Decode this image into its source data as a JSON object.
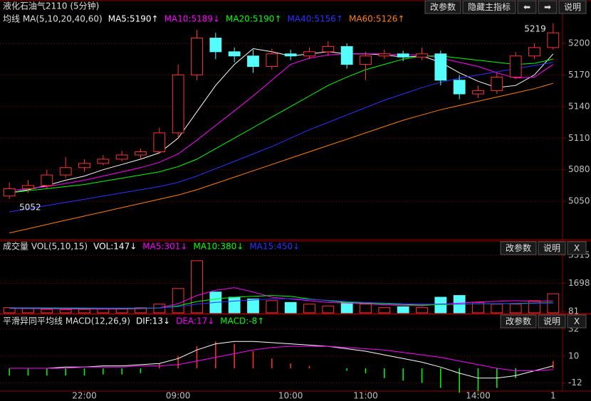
{
  "chart_data": [
    {
      "type": "candlestick",
      "title": "液化石油气2110 (5分钟)",
      "legend_title": "均线 MA(5,10,20,40,60)",
      "buttons": [
        "改参数",
        "隐藏主指标",
        "⬅",
        "➡",
        "说明"
      ],
      "high_label": "5219",
      "low_label": "5052",
      "up_color": "#ff3232",
      "down_color": "#54fcfc",
      "open": [
        5055,
        5062,
        5065,
        5075,
        5082,
        5086,
        5090,
        5094,
        5097,
        5115,
        5170,
        5205,
        5192,
        5188,
        5178,
        5190,
        5188,
        5192,
        5197,
        5180,
        5188,
        5190,
        5187,
        5190,
        5165,
        5152,
        5155,
        5168,
        5188,
        5196
      ],
      "close": [
        5062,
        5065,
        5075,
        5082,
        5086,
        5090,
        5094,
        5097,
        5115,
        5170,
        5205,
        5192,
        5188,
        5178,
        5190,
        5188,
        5192,
        5197,
        5180,
        5188,
        5190,
        5187,
        5190,
        5165,
        5152,
        5155,
        5168,
        5188,
        5196,
        5210
      ],
      "high": [
        5068,
        5070,
        5080,
        5092,
        5090,
        5094,
        5098,
        5100,
        5120,
        5180,
        5213,
        5210,
        5196,
        5194,
        5195,
        5194,
        5196,
        5202,
        5200,
        5192,
        5194,
        5193,
        5196,
        5193,
        5170,
        5160,
        5172,
        5192,
        5200,
        5219
      ],
      "low": [
        5052,
        5058,
        5062,
        5072,
        5078,
        5084,
        5088,
        5090,
        5095,
        5110,
        5165,
        5185,
        5182,
        5172,
        5175,
        5184,
        5185,
        5188,
        5176,
        5165,
        5185,
        5183,
        5184,
        5160,
        5147,
        5148,
        5152,
        5166,
        5185,
        5194
      ],
      "series": [
        {
          "name": "MA5:5190↑",
          "color": "#ffffff",
          "values": [
            5058,
            5061,
            5065,
            5070,
            5074,
            5080,
            5085,
            5090,
            5096,
            5110,
            5135,
            5160,
            5180,
            5195,
            5192,
            5188,
            5190,
            5192,
            5190,
            5190,
            5189,
            5187,
            5188,
            5182,
            5172,
            5164,
            5158,
            5160,
            5170,
            5190
          ]
        },
        {
          "name": "MA10:5189↓",
          "color": "#ff00ff",
          "values": [
            5060,
            5062,
            5064,
            5067,
            5070,
            5074,
            5078,
            5082,
            5087,
            5095,
            5108,
            5122,
            5136,
            5150,
            5165,
            5180,
            5186,
            5189,
            5190,
            5190,
            5190,
            5189,
            5189,
            5186,
            5182,
            5178,
            5172,
            5167,
            5168,
            5180
          ]
        },
        {
          "name": "MA20:5190↑",
          "color": "#00ff00",
          "values": [
            5058,
            5060,
            5062,
            5064,
            5066,
            5069,
            5072,
            5075,
            5078,
            5083,
            5090,
            5100,
            5110,
            5120,
            5130,
            5140,
            5150,
            5160,
            5168,
            5175,
            5180,
            5185,
            5188,
            5188,
            5186,
            5184,
            5182,
            5180,
            5181,
            5185
          ]
        },
        {
          "name": "MA40:5156↑",
          "color": "#3030ff",
          "values": [
            5040,
            5043,
            5046,
            5049,
            5052,
            5055,
            5058,
            5061,
            5064,
            5068,
            5074,
            5081,
            5088,
            5095,
            5102,
            5110,
            5118,
            5125,
            5132,
            5139,
            5146,
            5152,
            5158,
            5163,
            5167,
            5170,
            5173,
            5176,
            5179,
            5182
          ]
        },
        {
          "name": "MA60:5126↑",
          "color": "#ff8000",
          "values": [
            5020,
            5024,
            5028,
            5032,
            5036,
            5040,
            5044,
            5048,
            5052,
            5056,
            5061,
            5067,
            5073,
            5079,
            5085,
            5091,
            5097,
            5103,
            5109,
            5115,
            5121,
            5127,
            5132,
            5137,
            5141,
            5145,
            5149,
            5153,
            5157,
            5162
          ]
        }
      ],
      "ylim": [
        5015,
        5229
      ],
      "yticks": [
        5050,
        5080,
        5110,
        5140,
        5170,
        5200
      ],
      "grid": true
    },
    {
      "type": "bar",
      "legend_title": "成交量 VOL(5,10,15)",
      "buttons": [
        "改参数",
        "说明",
        "X"
      ],
      "name": "VOL:147↓",
      "name_color": "#ffffff",
      "values": [
        300,
        250,
        200,
        180,
        200,
        250,
        220,
        300,
        500,
        1400,
        3000,
        1200,
        900,
        800,
        700,
        600,
        500,
        400,
        600,
        500,
        300,
        350,
        300,
        900,
        1000,
        600,
        500,
        500,
        700,
        1100
      ],
      "series": [
        {
          "name": "MA5:301↓",
          "color": "#ff00ff",
          "values": [
            260,
            250,
            240,
            230,
            220,
            215,
            220,
            240,
            290,
            520,
            1000,
            1300,
            1450,
            1200,
            900,
            800,
            700,
            600,
            560,
            520,
            460,
            430,
            410,
            500,
            560,
            630,
            660,
            700,
            650,
            680
          ]
        },
        {
          "name": "MA10:380↓",
          "color": "#00ff00",
          "values": [
            280,
            275,
            270,
            265,
            260,
            255,
            250,
            255,
            280,
            400,
            650,
            800,
            900,
            950,
            1000,
            950,
            800,
            700,
            600,
            560,
            520,
            480,
            450,
            470,
            500,
            520,
            520,
            540,
            560,
            580
          ]
        },
        {
          "name": "MA15:450↓",
          "color": "#3030ff",
          "values": [
            300,
            300,
            295,
            290,
            285,
            280,
            275,
            275,
            285,
            350,
            500,
            600,
            680,
            740,
            800,
            820,
            780,
            720,
            660,
            600,
            560,
            520,
            500,
            500,
            510,
            520,
            520,
            530,
            540,
            560
          ]
        }
      ],
      "ylim": [
        0,
        3400
      ],
      "yticks": [
        81,
        1698,
        3315
      ],
      "grid": true
    },
    {
      "type": "macd",
      "legend_title": "平滑异同平均线 MACD(12,26,9)",
      "buttons": [
        "改参数",
        "说明",
        "X"
      ],
      "series": [
        {
          "name": "DIF:13↓",
          "color": "#ffffff",
          "values": [
            0,
            0,
            0,
            1,
            1,
            2,
            2,
            3,
            4,
            8,
            15,
            20,
            22,
            22,
            21,
            20,
            19,
            18,
            16,
            14,
            11,
            8,
            5,
            1,
            -4,
            -8,
            -8,
            -6,
            -2,
            2
          ]
        },
        {
          "name": "DEA:17↓",
          "color": "#ff00ff",
          "values": [
            0,
            0,
            0,
            0,
            1,
            1,
            1,
            2,
            2,
            3,
            6,
            9,
            12,
            15,
            17,
            18,
            18,
            18,
            17,
            16,
            15,
            13,
            11,
            9,
            6,
            3,
            0,
            -2,
            -2,
            -1
          ]
        }
      ],
      "histogram": {
        "name": "MACD:-8↑",
        "color": "#00ff00",
        "pos_color": "#ff3232",
        "neg_color": "#00ff00",
        "values": [
          -6,
          -6,
          -6,
          -6,
          -6,
          -5,
          -5,
          -4,
          4,
          10,
          18,
          22,
          20,
          14,
          8,
          4,
          2,
          0,
          -2,
          -4,
          -8,
          -10,
          -12,
          -16,
          -20,
          -22,
          -16,
          -8,
          0,
          6
        ]
      },
      "categories": [
        null,
        null,
        null,
        null,
        "22:00",
        null,
        null,
        null,
        null,
        "09:00",
        null,
        null,
        null,
        null,
        null,
        "10:00",
        null,
        null,
        null,
        "11:00",
        null,
        null,
        null,
        null,
        null,
        "14:00",
        null,
        null,
        null,
        "1"
      ],
      "ylim": [
        -18,
        32
      ],
      "yticks": [
        32,
        10,
        -12
      ],
      "grid": true
    }
  ]
}
